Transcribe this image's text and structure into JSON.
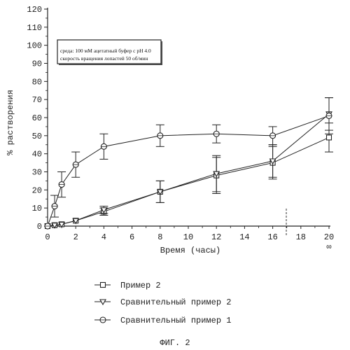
{
  "chart_data": {
    "type": "line",
    "title": "",
    "xlabel": "Время (часы)",
    "ylabel": "% растворения",
    "xlim": [
      0,
      20
    ],
    "ylim": [
      0,
      120
    ],
    "x_ticks": [
      "0",
      "2",
      "4",
      "6",
      "8",
      "10",
      "12",
      "14",
      "16",
      "18",
      "20"
    ],
    "x_extra_label": "∞",
    "y_ticks": [
      "0",
      "10",
      "20",
      "30",
      "40",
      "50",
      "60",
      "70",
      "80",
      "90",
      "100",
      "110",
      "120"
    ],
    "grid": false,
    "annotation": {
      "line1": "среда: 100 мМ ацетатный буфер с pH 4.0",
      "line2": "скорость вращения лопастей 50 об/мин"
    },
    "x": [
      0,
      0.5,
      1,
      2,
      4,
      8,
      12,
      16,
      20
    ],
    "series": [
      {
        "name": "Пример 2",
        "marker": "square",
        "values": [
          0,
          0.5,
          1,
          3,
          8,
          19,
          28,
          35,
          49
        ],
        "errors": [
          0.5,
          0.5,
          0.5,
          1,
          2,
          6,
          10,
          9,
          8
        ]
      },
      {
        "name": "Сравнительный пример 2",
        "marker": "triangle-down",
        "values": [
          0,
          0.5,
          1,
          3,
          9,
          19,
          29,
          36,
          62
        ],
        "errors": [
          0.5,
          0.5,
          0.5,
          1,
          2,
          6,
          10,
          9,
          9
        ]
      },
      {
        "name": "Сравнительный пример 1",
        "marker": "circle",
        "values": [
          0,
          11,
          23,
          34,
          44,
          50,
          51,
          50,
          61
        ],
        "errors": [
          0.5,
          6,
          7,
          7,
          7,
          6,
          5,
          5,
          10
        ]
      }
    ],
    "legend_position": "bottom"
  },
  "figure": {
    "caption": "ФИГ. 2"
  }
}
